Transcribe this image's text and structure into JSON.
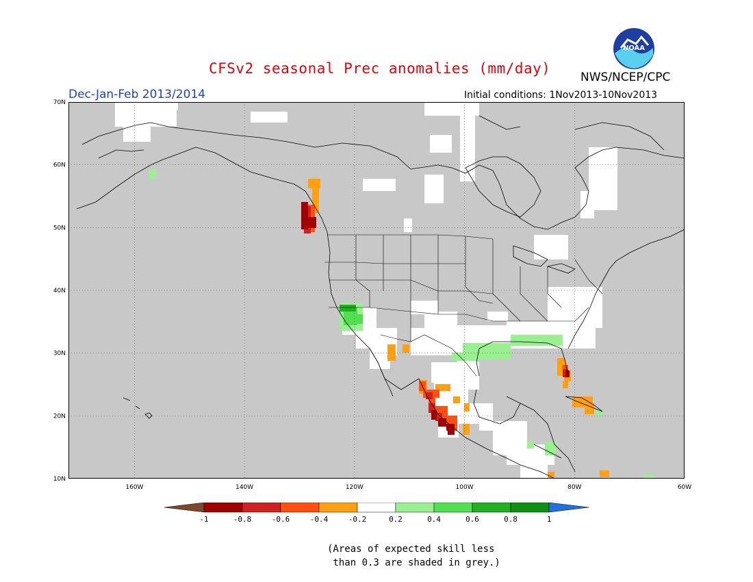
{
  "title": "CFSv2 seasonal Prec anomalies (mm/day)",
  "agency": "NWS/NCEP/CPC",
  "logo_text": "NOAA",
  "period": "Dec-Jan-Feb 2013/2014",
  "initial_conditions": "Initial conditions: 1Nov2013-10Nov2013",
  "map": {
    "lon_range": [
      -172,
      -60
    ],
    "lat_range": [
      10,
      70
    ],
    "gridlines": "dotted",
    "lat_ticks": [
      {
        "value": 70,
        "label": "70N"
      },
      {
        "value": 60,
        "label": "60N"
      },
      {
        "value": 50,
        "label": "50N"
      },
      {
        "value": 40,
        "label": "40N"
      },
      {
        "value": 30,
        "label": "30N"
      },
      {
        "value": 20,
        "label": "20N"
      },
      {
        "value": 10,
        "label": "10N"
      }
    ],
    "lon_ticks": [
      {
        "value": -160,
        "label": "160W"
      },
      {
        "value": -140,
        "label": "140W"
      },
      {
        "value": -120,
        "label": "120W"
      },
      {
        "value": -100,
        "label": "100W"
      },
      {
        "value": -80,
        "label": "80W"
      },
      {
        "value": -60,
        "label": "60W"
      }
    ],
    "low_skill_color": "#c8c8c8"
  },
  "colorbar": {
    "labels": [
      "-1",
      "-0.8",
      "-0.6",
      "-0.4",
      "-0.2",
      "0.2",
      "0.4",
      "0.6",
      "0.8",
      "1"
    ],
    "colors": [
      "#7a4a2a",
      "#a00000",
      "#d02020",
      "#ff5010",
      "#ffa010",
      "#ffffff",
      "#98f090",
      "#50e050",
      "#20b020",
      "#109010",
      "#2070e0"
    ]
  },
  "note": "(Areas of expected skill less\n than 0.3 are shaded in grey.)"
}
